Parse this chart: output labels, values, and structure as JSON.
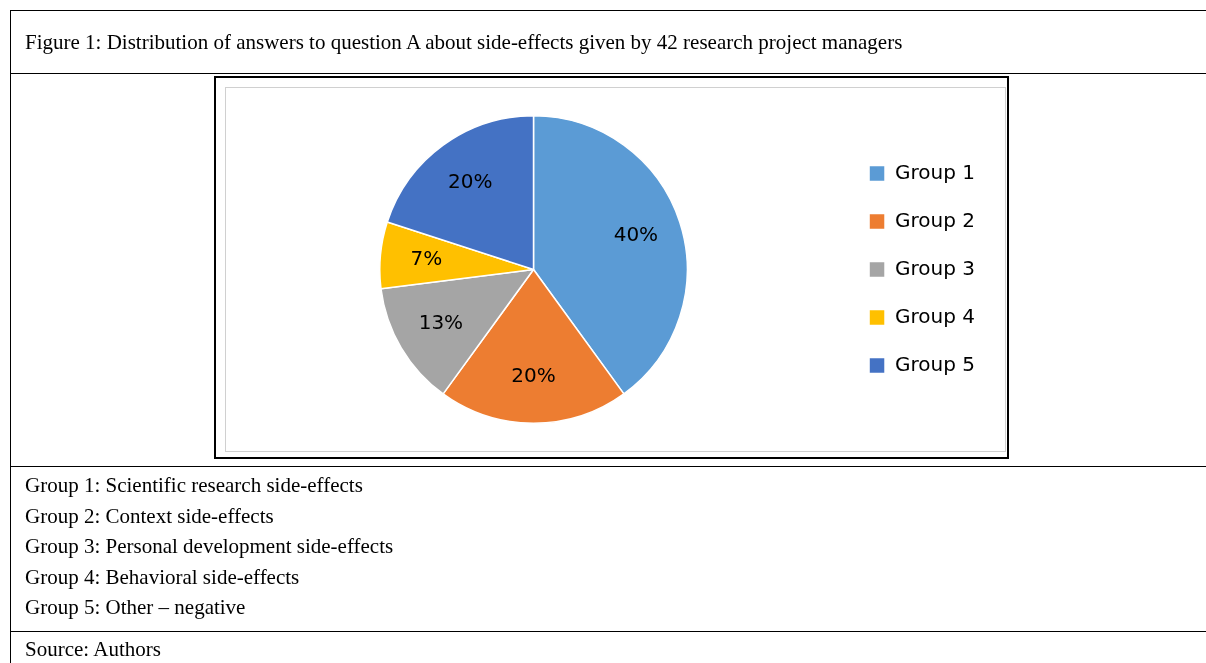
{
  "chart_data": {
    "type": "pie",
    "title": "Figure 1: Distribution of answers to question A about side-effects given by 42 research project managers",
    "categories": [
      "Group 1",
      "Group 2",
      "Group 3",
      "Group 4",
      "Group 5"
    ],
    "values": [
      40,
      20,
      13,
      7,
      20
    ],
    "value_labels": [
      "40%",
      "20%",
      "13%",
      "7%",
      "20%"
    ],
    "colors": [
      "#5b9bd5",
      "#ed7d31",
      "#a5a5a5",
      "#ffc000",
      "#4472c4"
    ],
    "legend": "right",
    "annotations": [
      "Group 1: Scientific research side-effects",
      "Group 2: Context side-effects",
      "Group 3: Personal development side-effects",
      "Group 4: Behavioral side-effects",
      "Group 5: Other – negative",
      "Source: Authors"
    ]
  }
}
